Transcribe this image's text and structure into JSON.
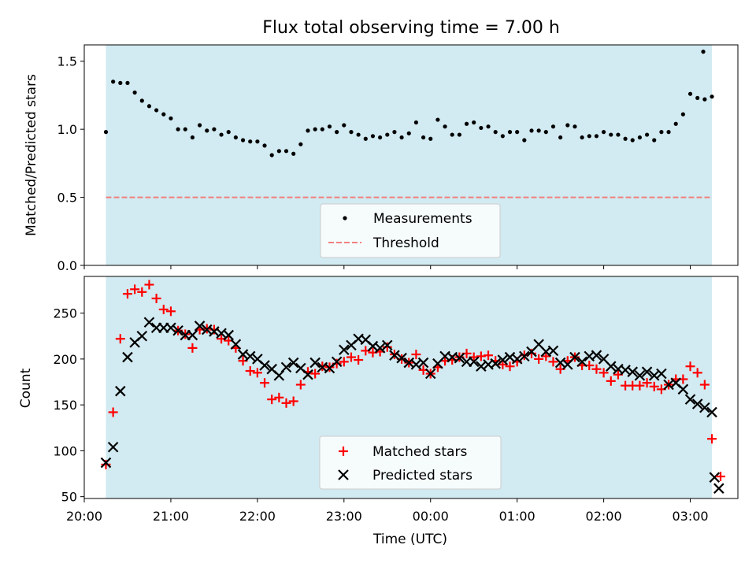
{
  "figure": {
    "title": "Flux total observing time = 7.00 h",
    "xlabel": "Time (UTC)"
  },
  "colors": {
    "shade": "#add8e6",
    "threshold": "#f08080",
    "matched": "#ff0000",
    "predicted": "#000000",
    "measurement": "#000000"
  },
  "chart_data": [
    {
      "type": "scatter",
      "ylabel": "Matched/Predicted stars",
      "xlim": [
        -0.25,
        7.3
      ],
      "ylim": [
        0,
        1.62
      ],
      "yticks": [
        0.0,
        0.5,
        1.0,
        1.5
      ],
      "shaded_region": [
        0,
        7.0
      ],
      "threshold": 0.5,
      "legend": {
        "position": "lower-center",
        "entries": [
          "Measurements",
          "Threshold"
        ]
      },
      "series": [
        {
          "name": "Measurements",
          "x": [
            0.0,
            0.0833,
            0.1667,
            0.25,
            0.3333,
            0.4167,
            0.5,
            0.5833,
            0.6667,
            0.75,
            0.8333,
            0.9167,
            1.0,
            1.0833,
            1.1667,
            1.25,
            1.3333,
            1.4167,
            1.5,
            1.5833,
            1.6667,
            1.75,
            1.8333,
            1.9167,
            2.0,
            2.0833,
            2.1667,
            2.25,
            2.3333,
            2.4167,
            2.5,
            2.5833,
            2.6667,
            2.75,
            2.8333,
            2.9167,
            3.0,
            3.0833,
            3.1667,
            3.25,
            3.3333,
            3.4167,
            3.5,
            3.5833,
            3.6667,
            3.75,
            3.8333,
            3.9167,
            4.0,
            4.0833,
            4.1667,
            4.25,
            4.3333,
            4.4167,
            4.5,
            4.5833,
            4.6667,
            4.75,
            4.8333,
            4.9167,
            5.0,
            5.0833,
            5.1667,
            5.25,
            5.3333,
            5.4167,
            5.5,
            5.5833,
            5.6667,
            5.75,
            5.8333,
            5.9167,
            6.0,
            6.0833,
            6.1667,
            6.25,
            6.3333,
            6.4167,
            6.5,
            6.5833,
            6.6667,
            6.75,
            6.8333,
            6.9167,
            7.0
          ],
          "y": [
            0.98,
            1.35,
            1.34,
            1.34,
            1.27,
            1.21,
            1.17,
            1.14,
            1.11,
            1.08,
            1.0,
            1.0,
            0.94,
            1.03,
            0.99,
            1.0,
            0.96,
            0.98,
            0.94,
            0.92,
            0.91,
            0.91,
            0.88,
            0.81,
            0.84,
            0.84,
            0.82,
            0.89,
            0.99,
            1.0,
            1.0,
            1.02,
            0.98,
            1.03,
            0.98,
            0.96,
            0.93,
            0.95,
            0.94,
            0.96,
            0.98,
            0.94,
            0.97,
            1.05,
            0.94,
            0.93,
            1.07,
            1.02,
            0.96,
            0.96,
            1.04,
            1.05,
            1.01,
            1.02,
            0.98,
            0.95,
            0.98,
            0.98,
            0.92,
            0.99,
            0.99,
            0.98,
            1.02,
            0.94,
            1.03,
            1.02,
            0.94,
            0.95,
            0.95,
            0.98,
            0.96,
            0.96,
            0.93,
            0.92,
            0.94,
            0.96,
            0.92,
            0.98,
            0.98,
            1.04,
            1.11,
            1.26,
            1.23,
            1.22,
            1.24
          ]
        }
      ],
      "extra_points": [
        {
          "x": 6.9,
          "y": 1.57
        }
      ]
    },
    {
      "type": "scatter",
      "ylabel": "Count",
      "xlim": [
        -0.25,
        7.3
      ],
      "ylim": [
        48,
        290
      ],
      "yticks": [
        50,
        100,
        150,
        200,
        250
      ],
      "xticks": [
        {
          "v": -0.25,
          "label": "20:00"
        },
        {
          "v": 0.75,
          "label": "21:00"
        },
        {
          "v": 1.75,
          "label": "22:00"
        },
        {
          "v": 2.75,
          "label": "23:00"
        },
        {
          "v": 3.75,
          "label": "00:00"
        },
        {
          "v": 4.75,
          "label": "01:00"
        },
        {
          "v": 5.75,
          "label": "02:00"
        },
        {
          "v": 6.75,
          "label": "03:00"
        }
      ],
      "shaded_region": [
        0,
        7.0
      ],
      "legend": {
        "position": "lower-center",
        "entries": [
          "Matched stars",
          "Predicted stars"
        ]
      },
      "series": [
        {
          "name": "Matched stars",
          "x": [
            0.0,
            0.0833,
            0.1667,
            0.25,
            0.3333,
            0.4167,
            0.5,
            0.5833,
            0.6667,
            0.75,
            0.8333,
            0.9167,
            1.0,
            1.0833,
            1.1667,
            1.25,
            1.3333,
            1.4167,
            1.5,
            1.5833,
            1.6667,
            1.75,
            1.8333,
            1.9167,
            2.0,
            2.0833,
            2.1667,
            2.25,
            2.3333,
            2.4167,
            2.5,
            2.5833,
            2.6667,
            2.75,
            2.8333,
            2.9167,
            3.0,
            3.0833,
            3.1667,
            3.25,
            3.3333,
            3.4167,
            3.5,
            3.5833,
            3.6667,
            3.75,
            3.8333,
            3.9167,
            4.0,
            4.0833,
            4.1667,
            4.25,
            4.3333,
            4.4167,
            4.5,
            4.5833,
            4.6667,
            4.75,
            4.8333,
            4.9167,
            5.0,
            5.0833,
            5.1667,
            5.25,
            5.3333,
            5.4167,
            5.5,
            5.5833,
            5.6667,
            5.75,
            5.8333,
            5.9167,
            6.0,
            6.0833,
            6.1667,
            6.25,
            6.3333,
            6.4167,
            6.5,
            6.5833,
            6.6667,
            6.75,
            6.8333,
            6.9167,
            7.0
          ],
          "y": [
            85,
            142,
            222,
            271,
            276,
            273,
            281,
            266,
            254,
            252,
            231,
            227,
            212,
            232,
            233,
            232,
            222,
            220,
            212,
            198,
            187,
            185,
            174,
            156,
            158,
            152,
            154,
            172,
            186,
            184,
            192,
            191,
            195,
            197,
            202,
            199,
            209,
            207,
            208,
            213,
            205,
            200,
            196,
            205,
            188,
            184,
            191,
            198,
            199,
            202,
            206,
            202,
            203,
            204,
            198,
            194,
            192,
            197,
            204,
            206,
            200,
            203,
            197,
            189,
            198,
            202,
            193,
            193,
            189,
            185,
            176,
            183,
            171,
            171,
            171,
            174,
            170,
            167,
            172,
            178,
            178,
            192,
            185,
            172,
            113
          ]
        },
        {
          "name": "Predicted stars",
          "x": [
            0.0,
            0.0833,
            0.1667,
            0.25,
            0.3333,
            0.4167,
            0.5,
            0.5833,
            0.6667,
            0.75,
            0.8333,
            0.9167,
            1.0,
            1.0833,
            1.1667,
            1.25,
            1.3333,
            1.4167,
            1.5,
            1.5833,
            1.6667,
            1.75,
            1.8333,
            1.9167,
            2.0,
            2.0833,
            2.1667,
            2.25,
            2.3333,
            2.4167,
            2.5,
            2.5833,
            2.6667,
            2.75,
            2.8333,
            2.9167,
            3.0,
            3.0833,
            3.1667,
            3.25,
            3.3333,
            3.4167,
            3.5,
            3.5833,
            3.6667,
            3.75,
            3.8333,
            3.9167,
            4.0,
            4.0833,
            4.1667,
            4.25,
            4.3333,
            4.4167,
            4.5,
            4.5833,
            4.6667,
            4.75,
            4.8333,
            4.9167,
            5.0,
            5.0833,
            5.1667,
            5.25,
            5.3333,
            5.4167,
            5.5,
            5.5833,
            5.6667,
            5.75,
            5.8333,
            5.9167,
            6.0,
            6.0833,
            6.1667,
            6.25,
            6.3333,
            6.4167,
            6.5,
            6.5833,
            6.6667,
            6.75,
            6.8333,
            6.9167,
            7.0
          ],
          "y": [
            87,
            104,
            165,
            202,
            218,
            225,
            240,
            234,
            234,
            234,
            231,
            226,
            226,
            236,
            232,
            230,
            228,
            226,
            216,
            205,
            203,
            200,
            193,
            189,
            182,
            191,
            196,
            190,
            183,
            196,
            191,
            190,
            197,
            210,
            215,
            222,
            221,
            214,
            212,
            215,
            204,
            201,
            196,
            194,
            196,
            184,
            195,
            203,
            202,
            201,
            197,
            197,
            192,
            194,
            195,
            199,
            202,
            200,
            203,
            208,
            216,
            208,
            209,
            196,
            194,
            202,
            197,
            203,
            204,
            200,
            192,
            189,
            188,
            186,
            182,
            186,
            182,
            184,
            172,
            174,
            167,
            156,
            151,
            147,
            142
          ]
        }
      ],
      "extra_points": [
        {
          "series": "Predicted stars",
          "x": 7.03,
          "y": 71
        },
        {
          "series": "Predicted stars",
          "x": 7.08,
          "y": 59
        },
        {
          "series": "Matched stars",
          "x": 7.1,
          "y": 72
        }
      ]
    }
  ]
}
